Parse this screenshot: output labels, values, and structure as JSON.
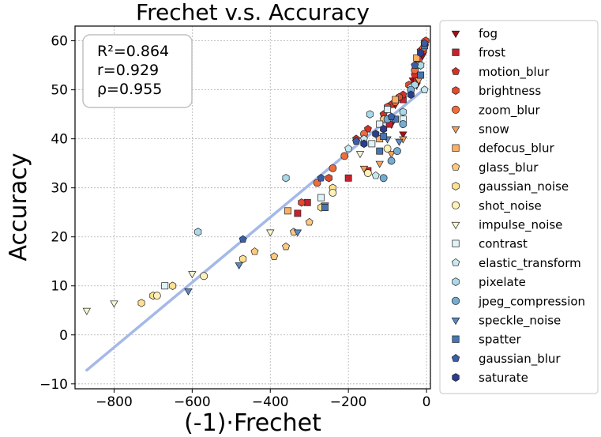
{
  "chart_data": {
    "type": "scatter",
    "title": "Frechet  v.s.  Accuracy",
    "xlabel": "(-1)·Frechet",
    "ylabel": "Accuracy",
    "xlim": [
      -900,
      10
    ],
    "ylim": [
      -11,
      63
    ],
    "xticks": [
      -800,
      -600,
      -400,
      -200,
      0
    ],
    "yticks": [
      -10,
      0,
      10,
      20,
      30,
      40,
      50,
      60
    ],
    "grid": true,
    "stats": [
      "R²=0.864",
      "r=0.929",
      "ρ=0.955"
    ],
    "fit_line": {
      "x": [
        -870,
        -5
      ],
      "y": [
        -7.2,
        50.2
      ],
      "color": "#a4b9e8"
    },
    "series": [
      {
        "name": "fog",
        "marker": "triangle-down",
        "color": "#a50f15",
        "points": [
          [
            -3,
            59.5
          ],
          [
            -10,
            57
          ],
          [
            -15,
            55
          ],
          [
            -25,
            51
          ],
          [
            -90,
            43
          ],
          [
            -60,
            41
          ],
          [
            -80,
            47
          ],
          [
            -35,
            52
          ]
        ]
      },
      {
        "name": "frost",
        "marker": "square",
        "color": "#c8202c",
        "points": [
          [
            -5,
            59.5
          ],
          [
            -25,
            52
          ],
          [
            -60,
            48
          ],
          [
            -95,
            43
          ],
          [
            -150,
            33.5
          ],
          [
            -200,
            32
          ],
          [
            -330,
            24.8
          ],
          [
            -305,
            27
          ]
        ]
      },
      {
        "name": "motion_blur",
        "marker": "pentagon",
        "color": "#d73027",
        "points": [
          [
            -4,
            59
          ],
          [
            -15,
            58
          ],
          [
            -30,
            53
          ],
          [
            -60,
            49
          ],
          [
            -90,
            47
          ],
          [
            -110,
            45
          ],
          [
            -150,
            42
          ],
          [
            -180,
            40
          ]
        ]
      },
      {
        "name": "brightness",
        "marker": "hexagon",
        "color": "#e04a2f",
        "points": [
          [
            -2,
            60
          ],
          [
            -8,
            58
          ],
          [
            -20,
            56
          ],
          [
            -45,
            51
          ],
          [
            -70,
            48.5
          ],
          [
            -100,
            46.5
          ],
          [
            -250,
            32
          ],
          [
            -320,
            27
          ]
        ]
      },
      {
        "name": "zoom_blur",
        "marker": "circle",
        "color": "#ef6c3c",
        "points": [
          [
            -8,
            58.5
          ],
          [
            -30,
            54
          ],
          [
            -80,
            47.5
          ],
          [
            -160,
            41
          ],
          [
            -210,
            36.5
          ],
          [
            -280,
            31
          ],
          [
            -240,
            34
          ]
        ]
      },
      {
        "name": "snow",
        "marker": "triangle-down",
        "color": "#f5a15c",
        "points": [
          [
            -20,
            52
          ],
          [
            -60,
            40
          ],
          [
            -90,
            37
          ],
          [
            -120,
            35
          ],
          [
            -160,
            34
          ]
        ]
      },
      {
        "name": "defocus_blur",
        "marker": "square",
        "color": "#fbb068",
        "points": [
          [
            -25,
            56.5
          ],
          [
            -80,
            48
          ],
          [
            -120,
            40
          ],
          [
            -355,
            25.3
          ]
        ]
      },
      {
        "name": "glass_blur",
        "marker": "pentagon",
        "color": "#fdc97f",
        "points": [
          [
            -340,
            21
          ],
          [
            -360,
            18
          ],
          [
            -390,
            16
          ],
          [
            -440,
            17
          ],
          [
            -300,
            23
          ],
          [
            -110,
            44
          ]
        ]
      },
      {
        "name": "gaussian_noise",
        "marker": "hexagon",
        "color": "#fee090",
        "points": [
          [
            -700,
            8
          ],
          [
            -730,
            6.5
          ],
          [
            -650,
            10
          ],
          [
            -470,
            15.5
          ],
          [
            -270,
            26
          ],
          [
            -240,
            30
          ]
        ]
      },
      {
        "name": "shot_noise",
        "marker": "circle",
        "color": "#fff0b8",
        "points": [
          [
            -690,
            8
          ],
          [
            -570,
            12
          ],
          [
            -240,
            29
          ],
          [
            -150,
            33
          ],
          [
            -100,
            38
          ]
        ]
      },
      {
        "name": "impulse_noise",
        "marker": "triangle-down",
        "color": "#f7f7cf",
        "points": [
          [
            -870,
            5
          ],
          [
            -800,
            6.5
          ],
          [
            -600,
            12.5
          ],
          [
            -400,
            21
          ],
          [
            -170,
            37
          ]
        ]
      },
      {
        "name": "contrast",
        "marker": "square",
        "color": "#e0f3f8",
        "points": [
          [
            -670,
            10
          ],
          [
            -270,
            28
          ],
          [
            -60,
            44
          ],
          [
            -20,
            55
          ],
          [
            -100,
            46
          ],
          [
            -120,
            43
          ],
          [
            -140,
            39
          ]
        ]
      },
      {
        "name": "elastic_transform",
        "marker": "pentagon",
        "color": "#c6e9f0",
        "points": [
          [
            -5,
            50
          ],
          [
            -40,
            50.5
          ],
          [
            -130,
            32.5
          ],
          [
            -160,
            40
          ],
          [
            -200,
            38
          ]
        ]
      },
      {
        "name": "pixelate",
        "marker": "hexagon",
        "color": "#abd9e9",
        "points": [
          [
            -585,
            21
          ],
          [
            -360,
            32
          ],
          [
            -145,
            45
          ],
          [
            -60,
            45.5
          ],
          [
            -30,
            51
          ],
          [
            -15,
            55
          ]
        ]
      },
      {
        "name": "jpeg_compression",
        "marker": "circle",
        "color": "#74add1",
        "points": [
          [
            -90,
            35.5
          ],
          [
            -110,
            32
          ],
          [
            -75,
            37.5
          ],
          [
            -60,
            43
          ],
          [
            -100,
            44
          ],
          [
            -40,
            50
          ]
        ]
      },
      {
        "name": "speckle_noise",
        "marker": "triangle-down",
        "color": "#5a8ac6",
        "points": [
          [
            -610,
            9
          ],
          [
            -480,
            14.3
          ],
          [
            -330,
            21
          ],
          [
            -260,
            26.5
          ],
          [
            -100,
            40
          ],
          [
            -70,
            39.5
          ]
        ]
      },
      {
        "name": "spatter",
        "marker": "square",
        "color": "#4575b4",
        "points": [
          [
            -5,
            59
          ],
          [
            -15,
            53
          ],
          [
            -80,
            44
          ],
          [
            -110,
            40.5
          ],
          [
            -120,
            37.5
          ],
          [
            -260,
            26
          ]
        ]
      },
      {
        "name": "gaussian_blur",
        "marker": "pentagon",
        "color": "#3a5fa8",
        "points": [
          [
            -470,
            19.5
          ],
          [
            -270,
            32
          ],
          [
            -180,
            39.5
          ],
          [
            -90,
            44.5
          ],
          [
            -30,
            55
          ],
          [
            -5,
            59.5
          ]
        ]
      },
      {
        "name": "saturate",
        "marker": "hexagon",
        "color": "#2b3d8f",
        "points": [
          [
            -15,
            57.5
          ],
          [
            -110,
            42
          ],
          [
            -130,
            41
          ],
          [
            -160,
            39
          ],
          [
            -40,
            49
          ]
        ]
      }
    ]
  }
}
